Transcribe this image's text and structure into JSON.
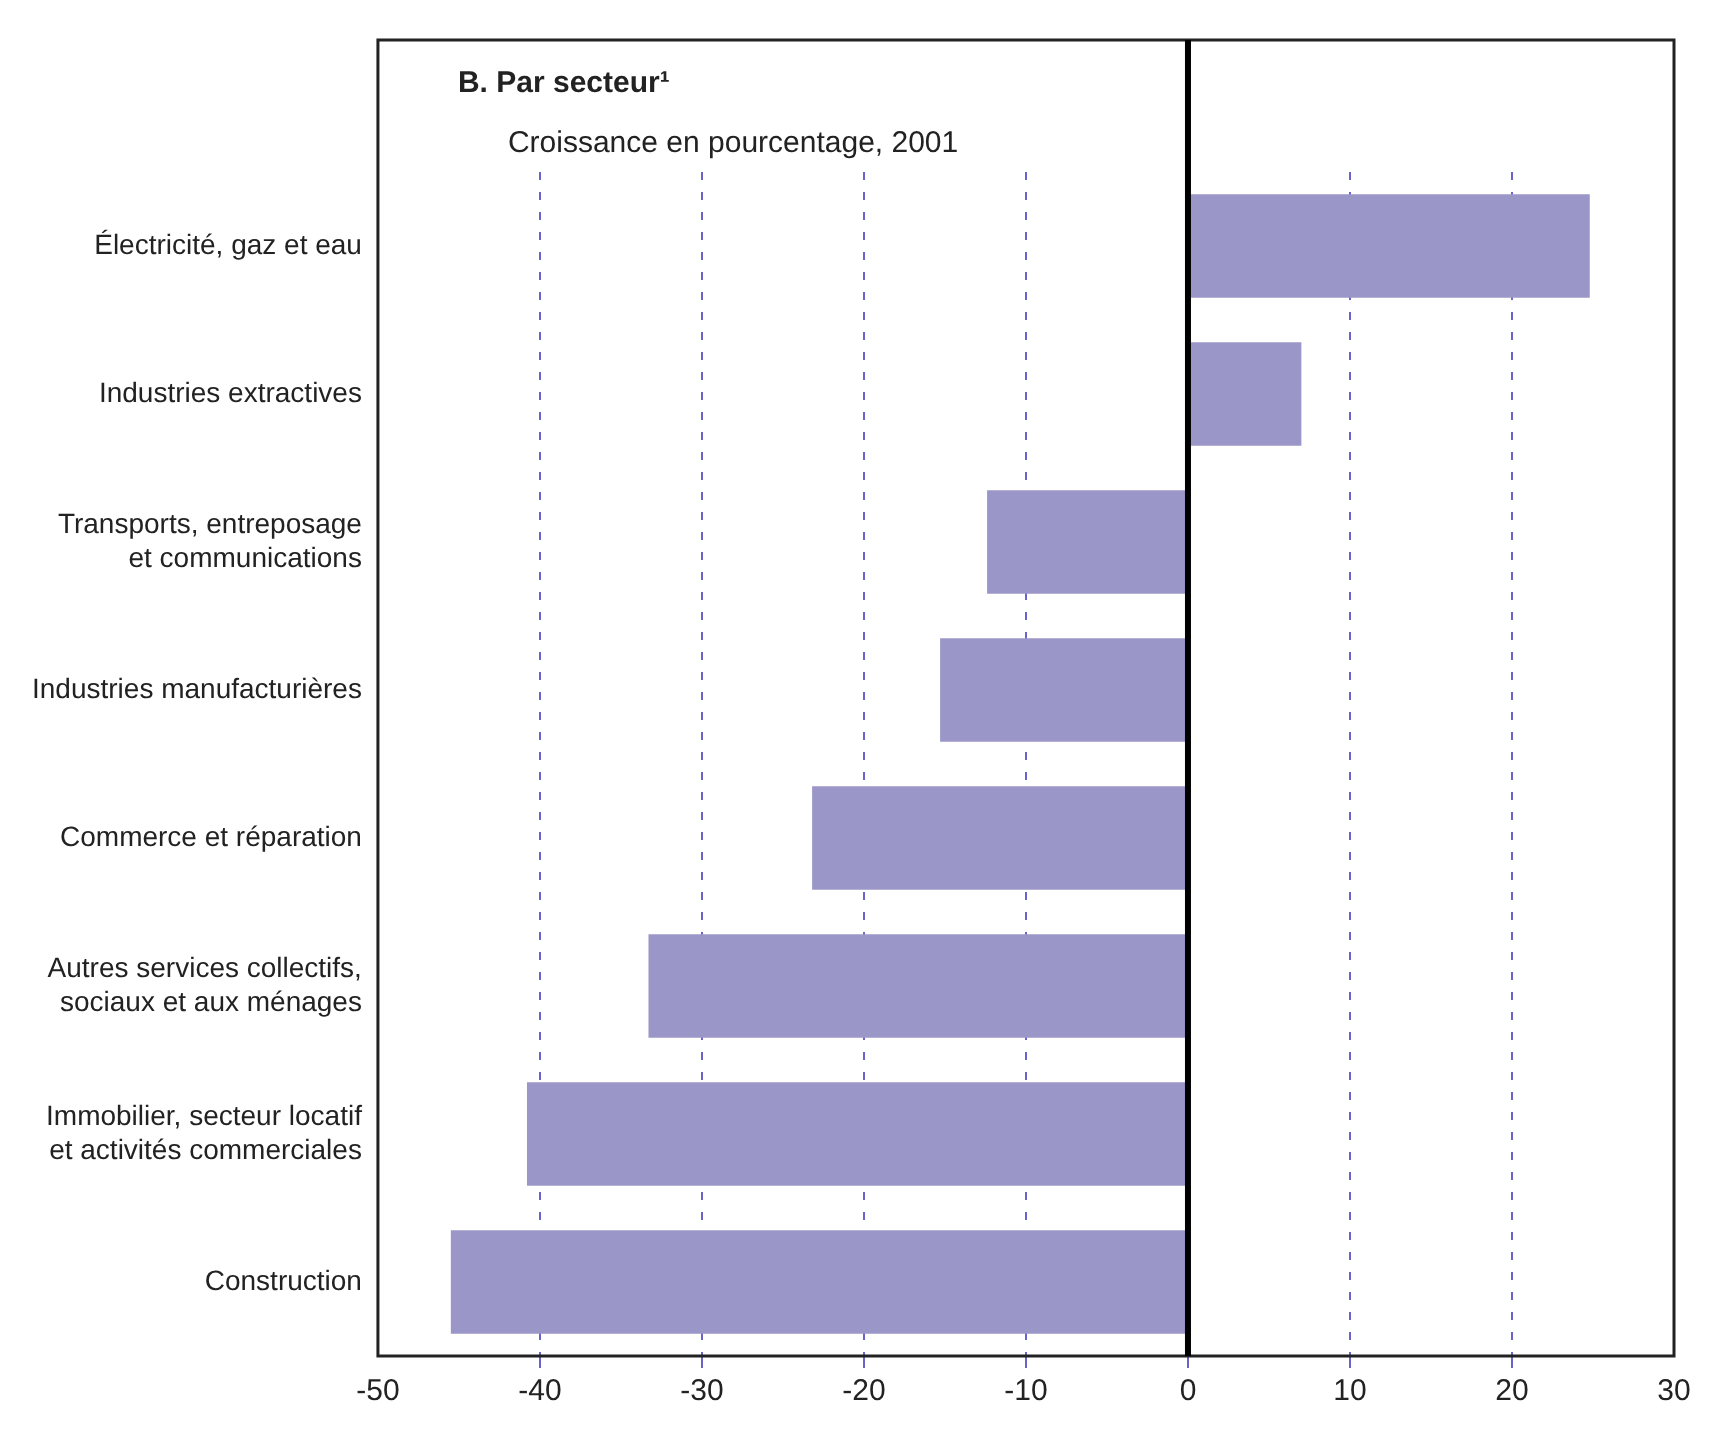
{
  "chart_data": {
    "type": "bar",
    "orientation": "horizontal",
    "title": "B. Par secteur¹",
    "subtitle": "Croissance en pourcentage, 2001",
    "categories": [
      "Électricité, gaz et eau",
      "Industries extractives",
      "Transports, entreposage et communications",
      "Industries manufacturières",
      "Commerce et réparation",
      "Autres services collectifs, sociaux et aux ménages",
      "Immobilier, secteur locatif et activités commerciales",
      "Construction"
    ],
    "values": [
      24.8,
      7,
      -12.4,
      -15.3,
      -23.2,
      -33.3,
      -40.8,
      -45.5
    ],
    "color": "#9b96c8",
    "xlim": [
      -50,
      30
    ],
    "xticks": [
      -50,
      -40,
      -30,
      -20,
      -10,
      0,
      10,
      20,
      30
    ],
    "grid": "x",
    "legend": false,
    "ref_lines": [
      {
        "axis": "x",
        "value": 0,
        "color": "#000000"
      }
    ]
  }
}
